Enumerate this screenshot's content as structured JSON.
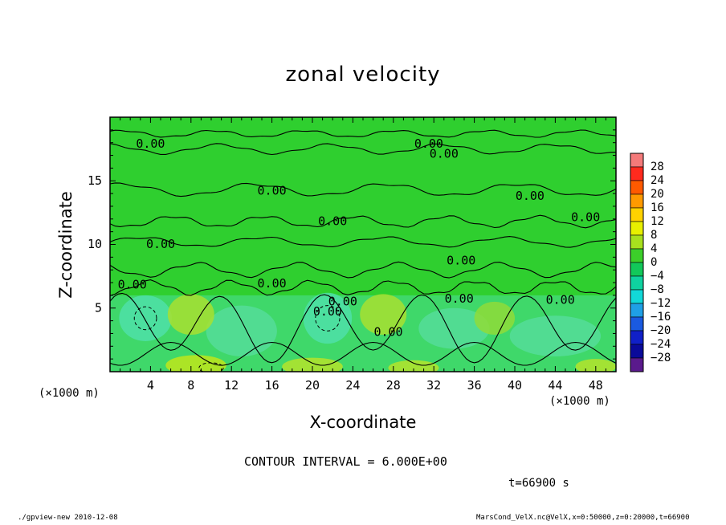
{
  "chart_data": {
    "type": "heatmap",
    "title": "zonal velocity",
    "xlabel": "X-coordinate",
    "ylabel": "Z-coordinate",
    "x_unit_label": "(×1000 m)",
    "xlim": [
      0,
      50
    ],
    "ylim": [
      0,
      20
    ],
    "x_ticks": [
      4,
      8,
      12,
      16,
      20,
      24,
      28,
      32,
      36,
      40,
      44,
      48
    ],
    "y_ticks": [
      5,
      10,
      15
    ],
    "contour_interval_text": "CONTOUR INTERVAL = 6.000E+00",
    "contour_labels": [
      "0.00"
    ],
    "colorbar": {
      "levels": [
        "28",
        "24",
        "20",
        "16",
        "12",
        "8",
        "4",
        "0",
        "−4",
        "−8",
        "−12",
        "−16",
        "−20",
        "−24",
        "−28"
      ],
      "colors": [
        "#f47a7a",
        "#ff2a1e",
        "#ff5a00",
        "#ff9a00",
        "#ffd200",
        "#e8f000",
        "#a8e01e",
        "#3ccf2a",
        "#12c85a",
        "#0fd2a0",
        "#12d8d8",
        "#1fa0e6",
        "#1a5ae0",
        "#1020c8",
        "#0a0a9a",
        "#5a1a8c"
      ]
    },
    "time_text": "t=66900 s",
    "footer_left": "./gpview-new   2010-12-08",
    "footer_right": "MarsCond_VelX.nc@VelX,x=0:50000,z=0:20000,t=66900"
  }
}
